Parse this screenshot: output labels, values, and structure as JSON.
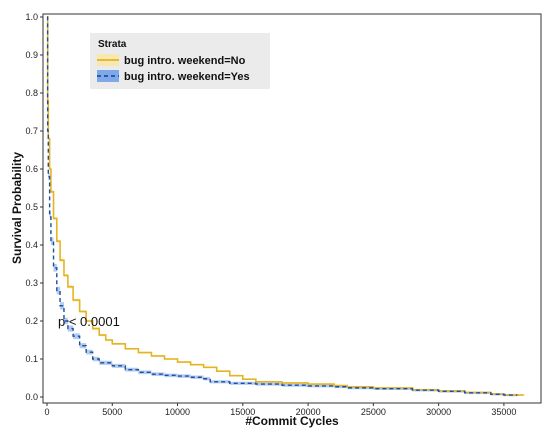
{
  "chart_data": {
    "type": "line",
    "title": "",
    "xlabel": "#Commit Cycles",
    "ylabel": "Survival Probability",
    "xlim": [
      0,
      37000
    ],
    "ylim": [
      0,
      1.0
    ],
    "x_ticks": [
      "0",
      "5000",
      "10000",
      "15000",
      "20000",
      "25000",
      "30000",
      "35000"
    ],
    "y_ticks": [
      "0.0",
      "0.1",
      "0.2",
      "0.3",
      "0.4",
      "0.5",
      "0.6",
      "0.7",
      "0.8",
      "0.9",
      "1.0"
    ],
    "grid": false,
    "legend": {
      "title": "Strata",
      "placement": "top-left",
      "entries": [
        "bug intro. weekend=No",
        "bug intro. weekend=Yes"
      ]
    },
    "annotation": "p < 0.0001",
    "series": [
      {
        "name": "bug intro. weekend=No",
        "color": "#E6B422",
        "line_style": "solid",
        "points": [
          [
            0,
            1.0
          ],
          [
            50,
            0.78
          ],
          [
            100,
            0.68
          ],
          [
            200,
            0.6
          ],
          [
            300,
            0.54
          ],
          [
            500,
            0.47
          ],
          [
            750,
            0.41
          ],
          [
            1000,
            0.36
          ],
          [
            1300,
            0.32
          ],
          [
            1600,
            0.29
          ],
          [
            2000,
            0.255
          ],
          [
            2500,
            0.225
          ],
          [
            3000,
            0.2
          ],
          [
            3500,
            0.18
          ],
          [
            4000,
            0.163
          ],
          [
            4500,
            0.15
          ],
          [
            5000,
            0.14
          ],
          [
            6000,
            0.127
          ],
          [
            7000,
            0.117
          ],
          [
            8000,
            0.108
          ],
          [
            9000,
            0.1
          ],
          [
            10000,
            0.092
          ],
          [
            11000,
            0.085
          ],
          [
            12000,
            0.078
          ],
          [
            13000,
            0.068
          ],
          [
            14000,
            0.056
          ],
          [
            15000,
            0.047
          ],
          [
            16000,
            0.04
          ],
          [
            18000,
            0.037
          ],
          [
            20000,
            0.034
          ],
          [
            22000,
            0.03
          ],
          [
            23000,
            0.027
          ],
          [
            25000,
            0.024
          ],
          [
            28000,
            0.019
          ],
          [
            30000,
            0.016
          ],
          [
            32000,
            0.012
          ],
          [
            34000,
            0.008
          ],
          [
            35000,
            0.005
          ],
          [
            36500,
            0.004
          ]
        ]
      },
      {
        "name": "bug intro. weekend=Yes",
        "color": "#1F4E9E",
        "band_color": "#7FA8E8",
        "line_style": "dashed",
        "points": [
          [
            0,
            1.0
          ],
          [
            50,
            0.7
          ],
          [
            100,
            0.58
          ],
          [
            200,
            0.48
          ],
          [
            300,
            0.41
          ],
          [
            500,
            0.34
          ],
          [
            750,
            0.28
          ],
          [
            1000,
            0.24
          ],
          [
            1300,
            0.2
          ],
          [
            1600,
            0.18
          ],
          [
            2000,
            0.16
          ],
          [
            2500,
            0.135
          ],
          [
            3000,
            0.118
          ],
          [
            3500,
            0.1
          ],
          [
            4000,
            0.09
          ],
          [
            5000,
            0.082
          ],
          [
            6000,
            0.072
          ],
          [
            7000,
            0.065
          ],
          [
            8000,
            0.06
          ],
          [
            9000,
            0.057
          ],
          [
            10000,
            0.055
          ],
          [
            11000,
            0.052
          ],
          [
            12000,
            0.048
          ],
          [
            12500,
            0.04
          ],
          [
            14000,
            0.036
          ],
          [
            16000,
            0.034
          ],
          [
            18000,
            0.031
          ],
          [
            20000,
            0.029
          ],
          [
            22000,
            0.027
          ],
          [
            23000,
            0.024
          ],
          [
            25000,
            0.022
          ],
          [
            28000,
            0.018
          ],
          [
            30000,
            0.015
          ],
          [
            32000,
            0.011
          ],
          [
            34000,
            0.007
          ],
          [
            35000,
            0.005
          ],
          [
            36000,
            0.004
          ]
        ]
      }
    ]
  }
}
